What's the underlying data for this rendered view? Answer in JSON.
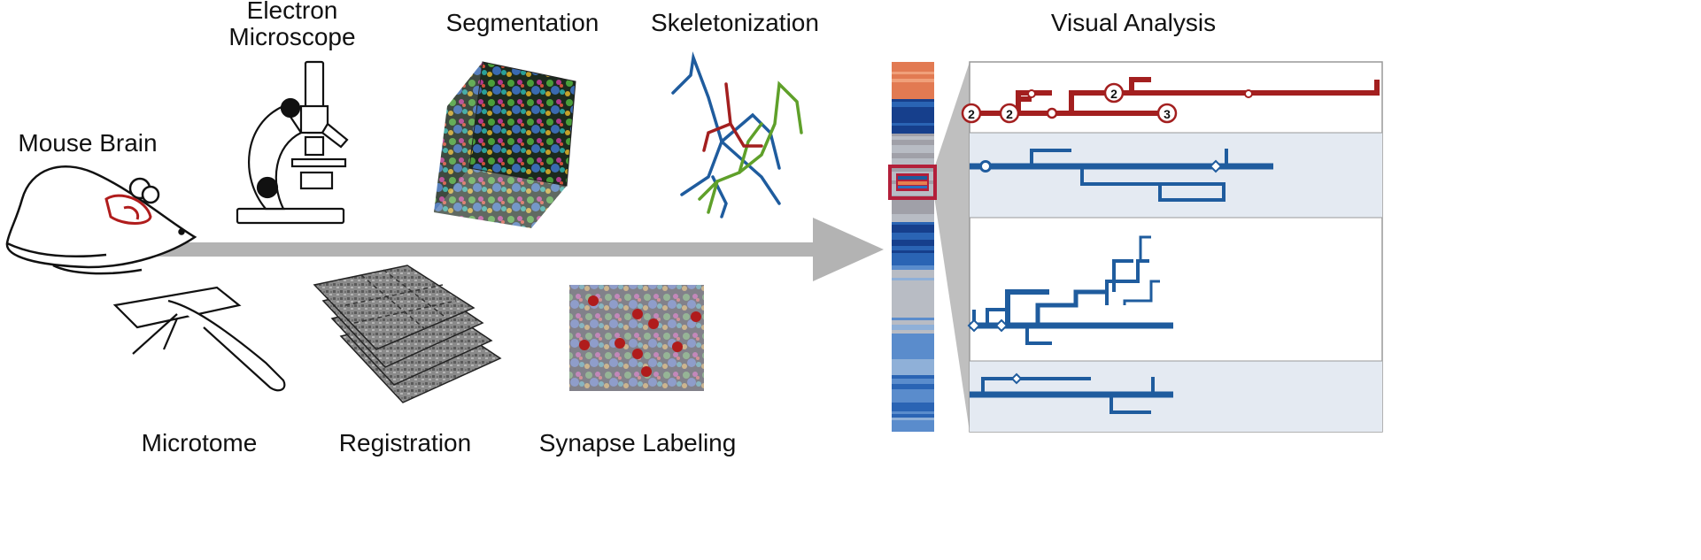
{
  "labels": {
    "electron_microscope_line1": "Electron",
    "electron_microscope_line2": "Microscope",
    "segmentation": "Segmentation",
    "skeletonization": "Skeletonization",
    "visual_analysis": "Visual Analysis",
    "mouse_brain": "Mouse Brain",
    "microtome": "Microtome",
    "registration": "Registration",
    "synapse_labeling": "Synapse Labeling"
  },
  "dendrogram_nodes": {
    "red_row": [
      "2",
      "2",
      "2",
      "3"
    ]
  },
  "colors": {
    "arrow": "#b3b3b3",
    "red_branch": "#a31f1f",
    "blue_branch": "#1f5c9e",
    "skeleton_green": "#5fa02a",
    "panel_bg": "#e4eaf2",
    "highlight": "#b31f3a"
  }
}
